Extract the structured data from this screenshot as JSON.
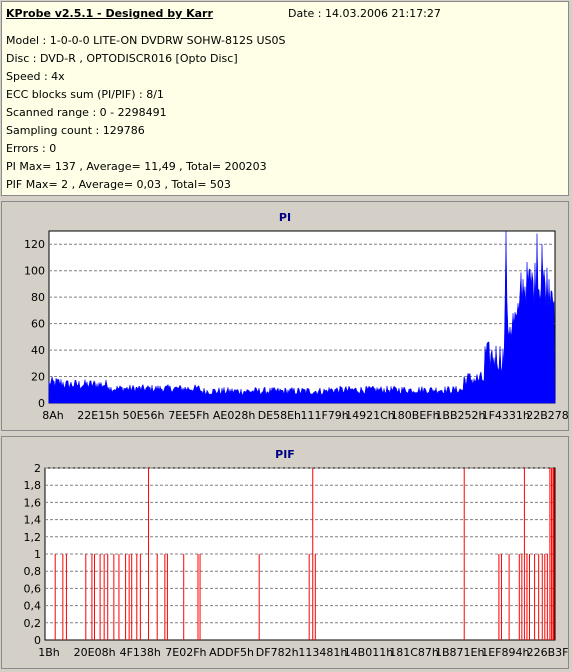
{
  "info": {
    "title": "KProbe v2.5.1 - Designed by Karr",
    "date": "Date : 14.03.2006 21:17:27",
    "lines": [
      "Model : 1-0-0-0 LITE-ON DVDRW SOHW-812S  US0S",
      "Disc : DVD-R , OPTODISCR016 [Opto Disc]",
      "Speed : 4x",
      "ECC blocks sum (PI/PIF) : 8/1",
      "Scanned range : 0 - 2298491",
      "Sampling count : 129786",
      "Errors : 0",
      "PI Max= 137 , Average= 11,49 , Total= 200203",
      "PIF Max= 2 , Average= 0,03 , Total= 503"
    ]
  },
  "colors": {
    "pi_series": "#0000ff",
    "pif_series": "#ff0000",
    "title_text": "#000080",
    "plot_background": "#ffffff",
    "grid": "#808080"
  },
  "chart_data": [
    {
      "type": "bar",
      "title": "PI",
      "ylim": [
        0,
        130
      ],
      "yticks": [
        0,
        20,
        40,
        60,
        80,
        100,
        120
      ],
      "ytick_labels": [
        "0",
        "20",
        "40",
        "60",
        "80",
        "100",
        "120"
      ],
      "xtick_labels": [
        "8Ah",
        "22E15h",
        "50E56h",
        "7EE5Fh",
        "AE028h",
        "DE58Eh",
        "111F79h",
        "14921Ch",
        "180BEFh",
        "1BB252h",
        "1F4331h",
        "22B278h"
      ],
      "grid": "horizontal dashed",
      "series": [
        {
          "segments": [
            {
              "x_start": 0.0,
              "x_end": 0.03,
              "mean": 15,
              "spread": 5
            },
            {
              "x_start": 0.03,
              "x_end": 0.12,
              "mean": 14,
              "spread": 4
            },
            {
              "x_start": 0.12,
              "x_end": 0.3,
              "mean": 11,
              "spread": 3
            },
            {
              "x_start": 0.3,
              "x_end": 0.55,
              "mean": 9,
              "spread": 3
            },
            {
              "x_start": 0.55,
              "x_end": 0.82,
              "mean": 10,
              "spread": 3
            },
            {
              "x_start": 0.82,
              "x_end": 0.86,
              "mean": 18,
              "spread": 6
            },
            {
              "x_start": 0.86,
              "x_end": 0.9,
              "mean": 35,
              "spread": 12
            },
            {
              "x_start": 0.9,
              "x_end": 0.93,
              "mean": 60,
              "spread": 18
            },
            {
              "x_start": 0.93,
              "x_end": 1.0,
              "mean": 90,
              "spread": 18
            }
          ],
          "peaks": [
            {
              "x": 0.905,
              "value": 137
            },
            {
              "x": 0.965,
              "value": 128
            },
            {
              "x": 0.975,
              "value": 120
            }
          ]
        }
      ]
    },
    {
      "type": "bar",
      "title": "PIF",
      "ylim": [
        0,
        2
      ],
      "yticks": [
        0,
        0.2,
        0.4,
        0.6,
        0.8,
        1,
        1.2,
        1.4,
        1.6,
        1.8,
        2
      ],
      "ytick_labels": [
        "0",
        "0,2",
        "0,4",
        "0,6",
        "0,8",
        "1",
        "1,2",
        "1,4",
        "1,6",
        "1,8",
        "2"
      ],
      "xtick_labels": [
        "1Bh",
        "20E08h",
        "4F138h",
        "7E02Fh",
        "ADDF5h",
        "DF782h",
        "113481h",
        "14B011h",
        "181C87h",
        "1B871Eh",
        "1EF894h",
        "226B3Fh"
      ],
      "grid": "horizontal dashed",
      "series": [
        {
          "points": [
            {
              "x": 0.02,
              "value": 1
            },
            {
              "x": 0.035,
              "value": 1
            },
            {
              "x": 0.042,
              "value": 1
            },
            {
              "x": 0.08,
              "value": 1
            },
            {
              "x": 0.092,
              "value": 1
            },
            {
              "x": 0.097,
              "value": 1
            },
            {
              "x": 0.108,
              "value": 1
            },
            {
              "x": 0.116,
              "value": 1
            },
            {
              "x": 0.123,
              "value": 1
            },
            {
              "x": 0.135,
              "value": 1
            },
            {
              "x": 0.145,
              "value": 1
            },
            {
              "x": 0.158,
              "value": 1
            },
            {
              "x": 0.165,
              "value": 1
            },
            {
              "x": 0.17,
              "value": 1
            },
            {
              "x": 0.18,
              "value": 1
            },
            {
              "x": 0.187,
              "value": 1
            },
            {
              "x": 0.203,
              "value": 2
            },
            {
              "x": 0.22,
              "value": 1
            },
            {
              "x": 0.235,
              "value": 1
            },
            {
              "x": 0.24,
              "value": 1
            },
            {
              "x": 0.272,
              "value": 1
            },
            {
              "x": 0.3,
              "value": 1
            },
            {
              "x": 0.304,
              "value": 1
            },
            {
              "x": 0.42,
              "value": 1
            },
            {
              "x": 0.518,
              "value": 1
            },
            {
              "x": 0.525,
              "value": 2
            },
            {
              "x": 0.53,
              "value": 1
            },
            {
              "x": 0.822,
              "value": 2
            },
            {
              "x": 0.89,
              "value": 1
            },
            {
              "x": 0.895,
              "value": 1
            },
            {
              "x": 0.91,
              "value": 1
            },
            {
              "x": 0.93,
              "value": 1
            },
            {
              "x": 0.935,
              "value": 1
            },
            {
              "x": 0.94,
              "value": 2
            },
            {
              "x": 0.945,
              "value": 1
            },
            {
              "x": 0.95,
              "value": 1
            },
            {
              "x": 0.96,
              "value": 1
            },
            {
              "x": 0.968,
              "value": 1
            },
            {
              "x": 0.975,
              "value": 1
            },
            {
              "x": 0.98,
              "value": 1
            },
            {
              "x": 0.985,
              "value": 1
            },
            {
              "x": 0.99,
              "value": 2
            },
            {
              "x": 0.993,
              "value": 2
            },
            {
              "x": 0.996,
              "value": 2
            },
            {
              "x": 1.0,
              "value": 2
            }
          ]
        }
      ]
    }
  ]
}
